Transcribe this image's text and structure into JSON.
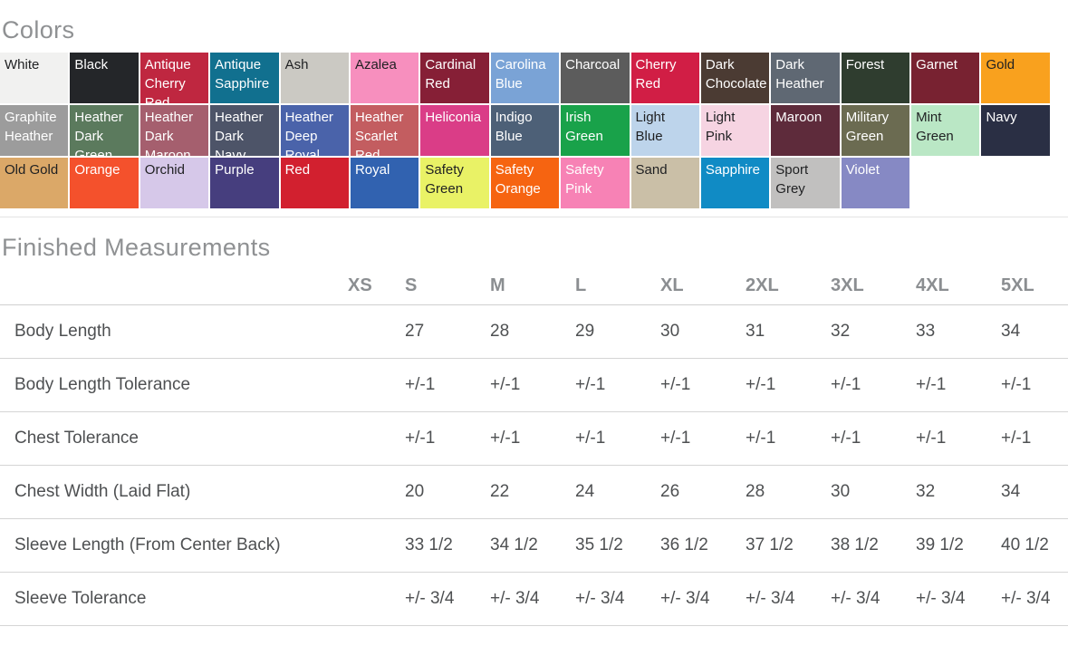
{
  "colors_section": {
    "title": "Colors",
    "swatch_rows": [
      [
        {
          "name": "White",
          "bg": "#f1f1f0",
          "fg": "#1f2022"
        },
        {
          "name": "Black",
          "bg": "#242629",
          "fg": "#ffffff"
        },
        {
          "name": "Antique Cherry Red",
          "bg": "#bf2740",
          "fg": "#ffffff"
        },
        {
          "name": "Antique Sapphire",
          "bg": "#11708f",
          "fg": "#ffffff"
        },
        {
          "name": "Ash",
          "bg": "#cbc9c3",
          "fg": "#1f2022"
        },
        {
          "name": "Azalea",
          "bg": "#f78fbe",
          "fg": "#1f2022"
        },
        {
          "name": "Cardinal Red",
          "bg": "#861f36",
          "fg": "#ffffff"
        },
        {
          "name": "Carolina Blue",
          "bg": "#7aa3d6",
          "fg": "#ffffff"
        },
        {
          "name": "Charcoal",
          "bg": "#5c5c5c",
          "fg": "#ffffff"
        },
        {
          "name": "Cherry Red",
          "bg": "#d11e45",
          "fg": "#ffffff"
        },
        {
          "name": "Dark Chocolate",
          "bg": "#4b3b33",
          "fg": "#ffffff"
        },
        {
          "name": "Dark Heather",
          "bg": "#5f6873",
          "fg": "#ffffff"
        },
        {
          "name": "Forest",
          "bg": "#2f3d2f",
          "fg": "#ffffff"
        },
        {
          "name": "Garnet",
          "bg": "#782231",
          "fg": "#ffffff"
        },
        {
          "name": "Gold",
          "bg": "#f9a11e",
          "fg": "#1f2022"
        }
      ],
      [
        {
          "name": "Graphite Heather",
          "bg": "#9c9c9c",
          "fg": "#ffffff"
        },
        {
          "name": "Heather Dark Green",
          "bg": "#5b7a5d",
          "fg": "#ffffff"
        },
        {
          "name": "Heather Dark Maroon",
          "bg": "#a55f6e",
          "fg": "#ffffff"
        },
        {
          "name": "Heather Dark Navy",
          "bg": "#4d5468",
          "fg": "#ffffff"
        },
        {
          "name": "Heather Deep Royal",
          "bg": "#4a63aa",
          "fg": "#ffffff"
        },
        {
          "name": "Heather Scarlet Red",
          "bg": "#c35d60",
          "fg": "#ffffff"
        },
        {
          "name": "Heliconia",
          "bg": "#da3d87",
          "fg": "#ffffff"
        },
        {
          "name": "Indigo Blue",
          "bg": "#4d6077",
          "fg": "#ffffff"
        },
        {
          "name": "Irish Green",
          "bg": "#19a24a",
          "fg": "#ffffff"
        },
        {
          "name": "Light Blue",
          "bg": "#bdd4eb",
          "fg": "#1f2022"
        },
        {
          "name": "Light Pink",
          "bg": "#f6d4e2",
          "fg": "#1f2022"
        },
        {
          "name": "Maroon",
          "bg": "#5e2b3b",
          "fg": "#ffffff"
        },
        {
          "name": "Military Green",
          "bg": "#6b6b51",
          "fg": "#ffffff"
        },
        {
          "name": "Mint Green",
          "bg": "#bae7c5",
          "fg": "#1f2022"
        },
        {
          "name": "Navy",
          "bg": "#2a2f44",
          "fg": "#ffffff"
        }
      ],
      [
        {
          "name": "Old Gold",
          "bg": "#dba868",
          "fg": "#1f2022"
        },
        {
          "name": "Orange",
          "bg": "#f4512c",
          "fg": "#ffffff"
        },
        {
          "name": "Orchid",
          "bg": "#d6c8e9",
          "fg": "#1f2022"
        },
        {
          "name": "Purple",
          "bg": "#463e7e",
          "fg": "#ffffff"
        },
        {
          "name": "Red",
          "bg": "#d2202f",
          "fg": "#ffffff"
        },
        {
          "name": "Royal",
          "bg": "#3162b0",
          "fg": "#ffffff"
        },
        {
          "name": "Safety Green",
          "bg": "#e9f266",
          "fg": "#1f2022"
        },
        {
          "name": "Safety Orange",
          "bg": "#f66411",
          "fg": "#ffffff"
        },
        {
          "name": "Safety Pink",
          "bg": "#f782b5",
          "fg": "#ffffff"
        },
        {
          "name": "Sand",
          "bg": "#cabfa7",
          "fg": "#1f2022"
        },
        {
          "name": "Sapphire",
          "bg": "#108bc5",
          "fg": "#ffffff"
        },
        {
          "name": "Sport Grey",
          "bg": "#c1c0bf",
          "fg": "#1f2022"
        },
        {
          "name": "Violet",
          "bg": "#8689c4",
          "fg": "#ffffff"
        }
      ]
    ]
  },
  "measurements_section": {
    "title": "Finished Measurements",
    "size_columns": [
      "XS",
      "S",
      "M",
      "L",
      "XL",
      "2XL",
      "3XL",
      "4XL",
      "5XL"
    ],
    "rows": [
      {
        "label": "Body Length",
        "values": [
          "",
          "27",
          "28",
          "29",
          "30",
          "31",
          "32",
          "33",
          "34"
        ]
      },
      {
        "label": "Body Length Tolerance",
        "values": [
          "",
          "+/-1",
          "+/-1",
          "+/-1",
          "+/-1",
          "+/-1",
          "+/-1",
          "+/-1",
          "+/-1"
        ]
      },
      {
        "label": "Chest Tolerance",
        "values": [
          "",
          "+/-1",
          "+/-1",
          "+/-1",
          "+/-1",
          "+/-1",
          "+/-1",
          "+/-1",
          "+/-1"
        ]
      },
      {
        "label": "Chest Width (Laid Flat)",
        "values": [
          "",
          "20",
          "22",
          "24",
          "26",
          "28",
          "30",
          "32",
          "34"
        ]
      },
      {
        "label": "Sleeve Length (From Center Back)",
        "values": [
          "",
          "33 1/2",
          "34 1/2",
          "35 1/2",
          "36 1/2",
          "37 1/2",
          "38 1/2",
          "39 1/2",
          "40 1/2"
        ]
      },
      {
        "label": "Sleeve Tolerance",
        "values": [
          "",
          "+/- 3/4",
          "+/- 3/4",
          "+/- 3/4",
          "+/- 3/4",
          "+/- 3/4",
          "+/- 3/4",
          "+/- 3/4",
          "+/- 3/4"
        ]
      }
    ]
  }
}
